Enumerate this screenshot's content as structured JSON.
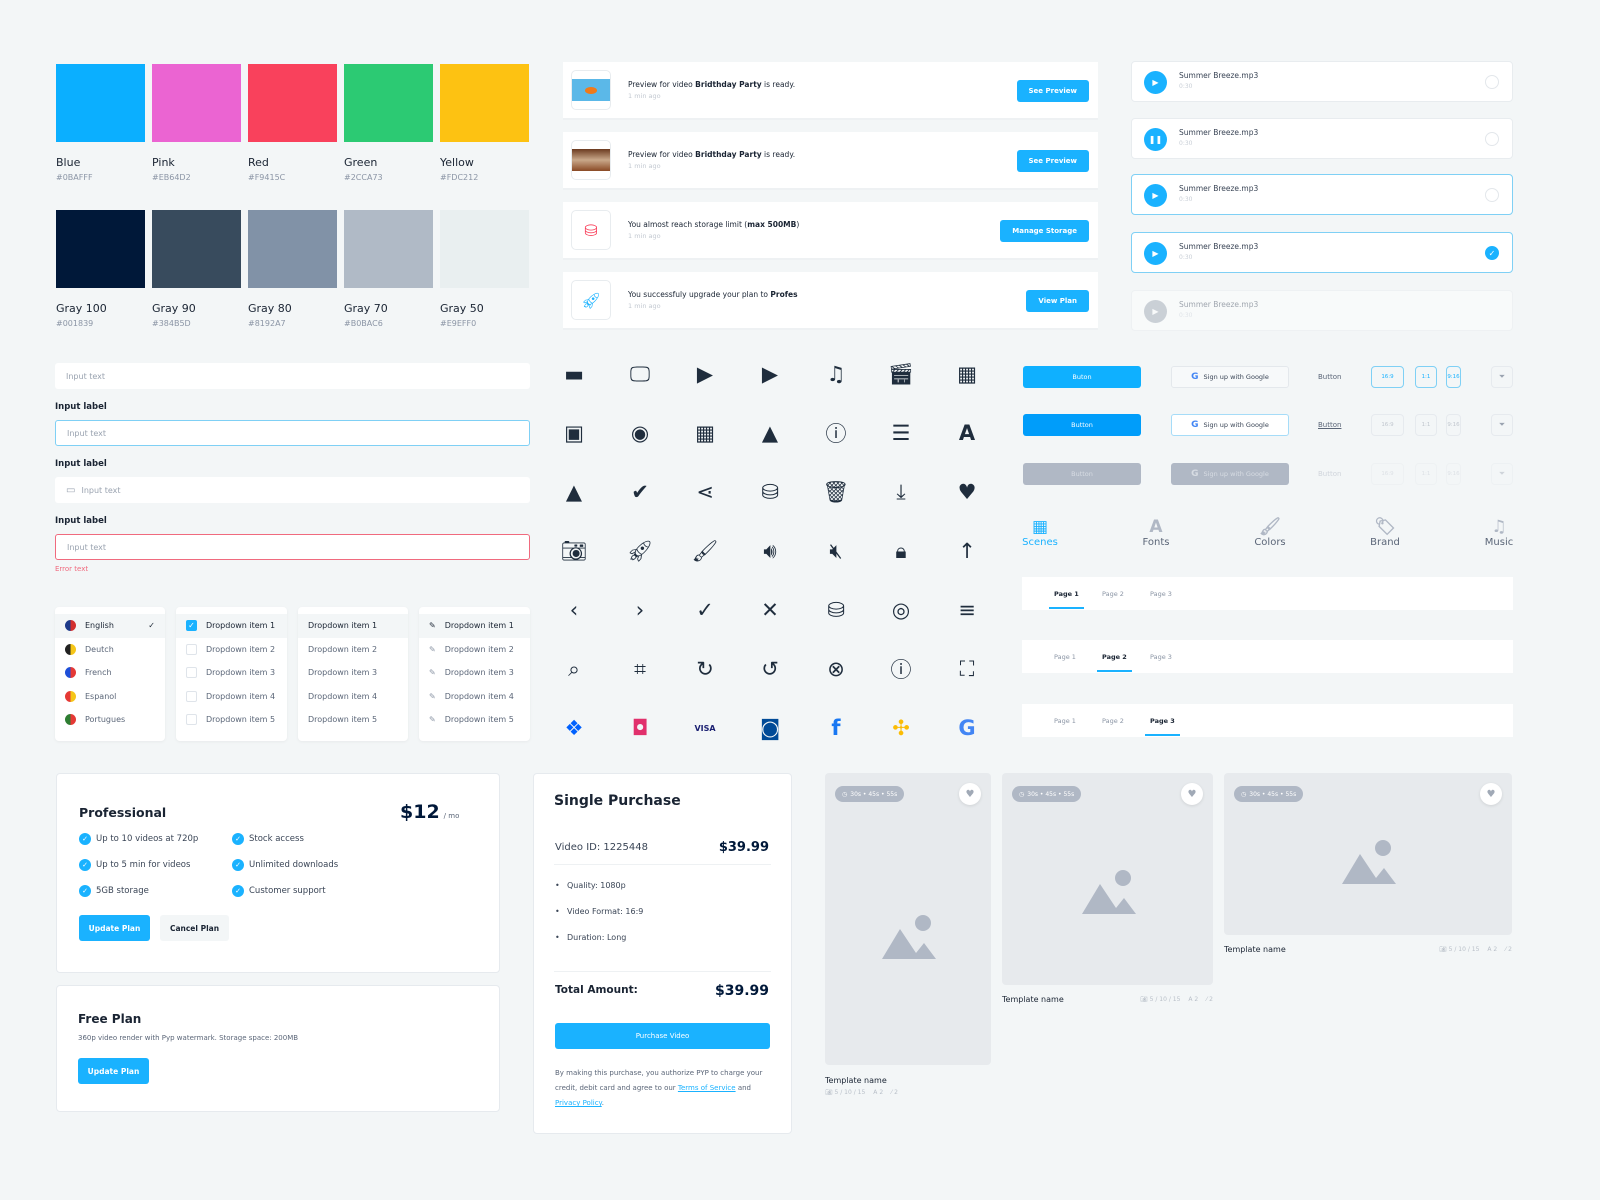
{
  "swatches": [
    {
      "name": "Blue",
      "hex": "#0BAFFF"
    },
    {
      "name": "Pink",
      "hex": "#EB64D2"
    },
    {
      "name": "Red",
      "hex": "#F9415C"
    },
    {
      "name": "Green",
      "hex": "#2CCA73"
    },
    {
      "name": "Yellow",
      "hex": "#FDC212"
    },
    {
      "name": "Gray 100",
      "hex": "#001839"
    },
    {
      "name": "Gray 90",
      "hex": "#384B5D"
    },
    {
      "name": "Gray 80",
      "hex": "#8192A7"
    },
    {
      "name": "Gray 70",
      "hex": "#B0BAC6"
    },
    {
      "name": "Gray 50",
      "hex": "#E9EFF0"
    }
  ],
  "inputs": {
    "placeholder": "Input text",
    "label": "Input label",
    "error": "Error text"
  },
  "languages": [
    {
      "label": "English",
      "selected": true,
      "flag": [
        "#1e3a8a",
        "#d32f2f"
      ]
    },
    {
      "label": "Deutch",
      "flag": [
        "#222",
        "#f5c518"
      ]
    },
    {
      "label": "French",
      "flag": [
        "#1e4fd8",
        "#e53935"
      ]
    },
    {
      "label": "Espanol",
      "flag": [
        "#e53935",
        "#f5c518"
      ]
    },
    {
      "label": "Portugues",
      "flag": [
        "#2e7d32",
        "#e53935"
      ]
    }
  ],
  "dropdown_items": [
    "Dropdown item 1",
    "Dropdown item 2",
    "Dropdown item 3",
    "Dropdown item 4",
    "Dropdown item 5"
  ],
  "notifications": [
    {
      "pre": "Preview for video ",
      "bold": "Bridthday Party",
      "post": " is ready.",
      "time": "1 min ago",
      "button": "See Preview",
      "thumb": "orange-photo"
    },
    {
      "pre": "Preview for video ",
      "bold": "Bridthday Party",
      "post": " is ready.",
      "time": "1 min ago",
      "button": "See Preview",
      "thumb": "cake-photo"
    },
    {
      "pre": "You almost reach storage limit (",
      "bold": "max 500MB",
      "post": ")",
      "time": "1 min ago",
      "button": "Manage Storage",
      "thumb": "storage-warning-icon"
    },
    {
      "pre": "You successfuly upgrade your plan to ",
      "bold": "Profes",
      "post": "",
      "time": "1 min ago",
      "button": "View Plan",
      "thumb": "rocket-icon"
    }
  ],
  "audio": [
    {
      "name": "Summer Breeze.mp3",
      "duration": "0:30",
      "state": "play"
    },
    {
      "name": "Summer Breeze.mp3",
      "duration": "0:30",
      "state": "pause"
    },
    {
      "name": "Summer Breeze.mp3",
      "duration": "0:30",
      "state": "play",
      "focused": true
    },
    {
      "name": "Summer Breeze.mp3",
      "duration": "0:30",
      "state": "play",
      "focused": true,
      "selected": true
    },
    {
      "name": "Summer Breeze.mp3",
      "duration": "0:30",
      "state": "disabled"
    }
  ],
  "icons": [
    [
      "folder",
      "monitor",
      "video-x",
      "video-warning",
      "music-note",
      "clapperboard",
      "film-strip"
    ],
    [
      "video-library",
      "eye",
      "grid",
      "image",
      "info",
      "list",
      "font"
    ],
    [
      "google-drive",
      "check-circle",
      "share",
      "storage-warning",
      "trash",
      "download",
      "heart"
    ],
    [
      "camera",
      "rocket",
      "brush",
      "volume",
      "mute",
      "lock",
      "arrow-up"
    ],
    [
      "chevron-left",
      "chevron-right",
      "check",
      "close",
      "database",
      "eye-outline",
      "menu"
    ],
    [
      "search",
      "crop",
      "redo",
      "undo",
      "close-circle",
      "info-outline",
      "fullscreen"
    ],
    [
      "dropbox",
      "instagram",
      "visa",
      "diners-club",
      "facebook",
      "google-photos",
      "google"
    ]
  ],
  "buttons": {
    "primary_default": "Buton",
    "primary": "Button",
    "google": "Sign up with Google",
    "text": "Button",
    "ratios": [
      "16:9",
      "1:1",
      "9:16"
    ]
  },
  "tabs": [
    {
      "label": "Scenes",
      "icon": "clapperboard",
      "active": true
    },
    {
      "label": "Fonts",
      "icon": "font"
    },
    {
      "label": "Colors",
      "icon": "brush"
    },
    {
      "label": "Brand",
      "icon": "tag"
    },
    {
      "label": "Music",
      "icon": "music-note"
    }
  ],
  "pages": [
    "Page 1",
    "Page 2",
    "Page 3"
  ],
  "professional": {
    "title": "Professional",
    "price": "$12",
    "period": "/ mo",
    "features": [
      "Up to 10 videos at 720p",
      "Up to 5 min for videos",
      "5GB storage",
      "Stock access",
      "Unlimited downloads",
      "Customer support"
    ],
    "update": "Update Plan",
    "cancel": "Cancel Plan"
  },
  "free": {
    "title": "Free Plan",
    "desc": "360p video render with Pyp watermark. Storage space: 200MB",
    "update": "Update Plan"
  },
  "purchase": {
    "title": "Single Purchase",
    "video_id": "Video ID: 1225448",
    "price": "$39.99",
    "bullets": [
      "Quality: 1080p",
      "Video Format: 16:9",
      "Duration: Long"
    ],
    "total_label": "Total Amount:",
    "total": "$39.99",
    "button": "Purchase Video",
    "legal_pre": "By making this purchase, you authorize PYP to charge your credit, debit card and agree to our ",
    "terms": "Terms of Service",
    "and": " and ",
    "privacy": "Privacy Policy",
    "end": "."
  },
  "templates": [
    {
      "name": "Template name",
      "durations": "30s • 45s • 55s",
      "scenes": "5 / 10 / 15",
      "fonts": "2",
      "colors": "2"
    },
    {
      "name": "Template name",
      "durations": "30s • 45s • 55s",
      "scenes": "5 / 10 / 15",
      "fonts": "2",
      "colors": "2"
    },
    {
      "name": "Template name",
      "durations": "30s • 45s • 55s",
      "scenes": "5 / 10 / 15",
      "fonts": "2",
      "colors": "2"
    }
  ],
  "colors": {
    "accent": "#1AB2FF",
    "error": "#F06A7E"
  }
}
